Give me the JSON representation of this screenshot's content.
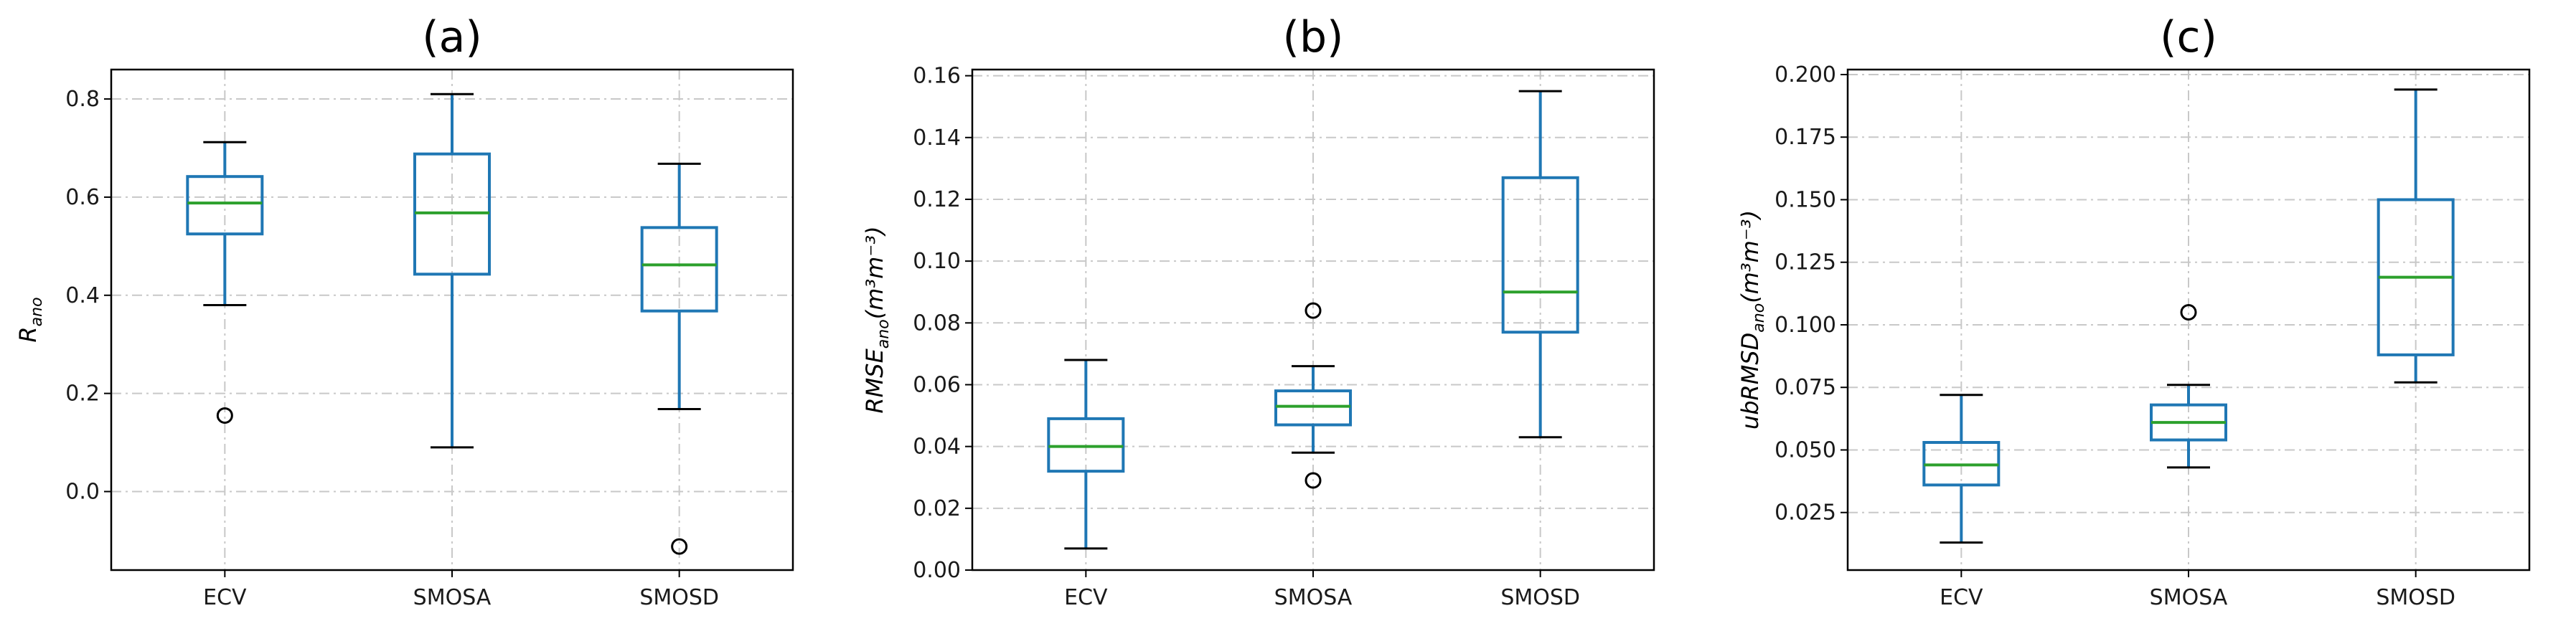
{
  "colors": {
    "box": "#1f77b4",
    "median": "#2ca02c",
    "cap": "#000000"
  },
  "chart_data": [
    {
      "type": "box",
      "title": "(a)",
      "ylabel": {
        "base": "R",
        "sub": "ano",
        "unit": ""
      },
      "categories": [
        "ECV",
        "SMOSA",
        "SMOSD"
      ],
      "ylim": [
        -0.16,
        0.86
      ],
      "yticks": [
        0.0,
        0.2,
        0.4,
        0.6,
        0.8
      ],
      "ytick_labels": [
        "0.0",
        "0.2",
        "0.4",
        "0.6",
        "0.8"
      ],
      "grid": true,
      "boxes": [
        {
          "whislo": 0.38,
          "q1": 0.525,
          "med": 0.588,
          "q3": 0.642,
          "whishi": 0.712,
          "fliers": [
            0.155
          ]
        },
        {
          "whislo": 0.09,
          "q1": 0.443,
          "med": 0.568,
          "q3": 0.688,
          "whishi": 0.81,
          "fliers": []
        },
        {
          "whislo": 0.168,
          "q1": 0.368,
          "med": 0.462,
          "q3": 0.538,
          "whishi": 0.668,
          "fliers": [
            -0.112
          ]
        }
      ]
    },
    {
      "type": "box",
      "title": "(b)",
      "ylabel": {
        "base": "RMSE",
        "sub": "ano",
        "unit": "(m³m⁻³)"
      },
      "categories": [
        "ECV",
        "SMOSA",
        "SMOSD"
      ],
      "ylim": [
        0.0,
        0.162
      ],
      "yticks": [
        0.0,
        0.02,
        0.04,
        0.06,
        0.08,
        0.1,
        0.12,
        0.14,
        0.16
      ],
      "ytick_labels": [
        "0.00",
        "0.02",
        "0.04",
        "0.06",
        "0.08",
        "0.10",
        "0.12",
        "0.14",
        "0.16"
      ],
      "grid": true,
      "boxes": [
        {
          "whislo": 0.007,
          "q1": 0.032,
          "med": 0.04,
          "q3": 0.049,
          "whishi": 0.068,
          "fliers": []
        },
        {
          "whislo": 0.038,
          "q1": 0.047,
          "med": 0.053,
          "q3": 0.058,
          "whishi": 0.066,
          "fliers": [
            0.084,
            0.029
          ]
        },
        {
          "whislo": 0.043,
          "q1": 0.077,
          "med": 0.09,
          "q3": 0.127,
          "whishi": 0.155,
          "fliers": []
        }
      ]
    },
    {
      "type": "box",
      "title": "(c)",
      "ylabel": {
        "base": "ubRMSD",
        "sub": "ano",
        "unit": "(m³m⁻³)"
      },
      "categories": [
        "ECV",
        "SMOSA",
        "SMOSD"
      ],
      "ylim": [
        0.002,
        0.202
      ],
      "yticks": [
        0.025,
        0.05,
        0.075,
        0.1,
        0.125,
        0.15,
        0.175,
        0.2
      ],
      "ytick_labels": [
        "0.025",
        "0.050",
        "0.075",
        "0.100",
        "0.125",
        "0.150",
        "0.175",
        "0.200"
      ],
      "grid": true,
      "boxes": [
        {
          "whislo": 0.013,
          "q1": 0.036,
          "med": 0.044,
          "q3": 0.053,
          "whishi": 0.072,
          "fliers": []
        },
        {
          "whislo": 0.043,
          "q1": 0.054,
          "med": 0.061,
          "q3": 0.068,
          "whishi": 0.076,
          "fliers": [
            0.105
          ]
        },
        {
          "whislo": 0.077,
          "q1": 0.088,
          "med": 0.119,
          "q3": 0.15,
          "whishi": 0.194,
          "fliers": []
        }
      ]
    }
  ]
}
